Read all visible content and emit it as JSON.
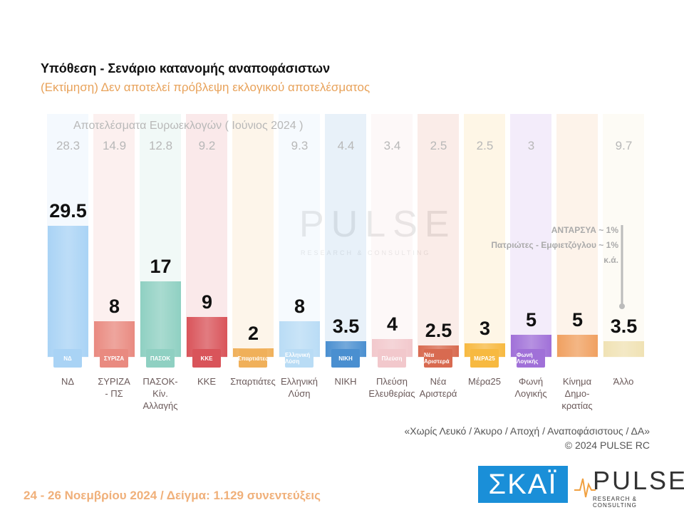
{
  "header": {
    "title": "Υπόθεση - Σενάριο κατανομής αναποφάσιστων",
    "subtitle": "(Εκτίμηση)   Δεν αποτελεί πρόβλεψη εκλογικού αποτελέσματος"
  },
  "chart_data": {
    "type": "bar",
    "euro_results_label": "Αποτελέσματα Ευρωεκλογών  ( Ιούνιος 2024 )",
    "categories": [
      "ΝΔ",
      "ΣΥΡΙΖΑ\n- ΠΣ",
      "ΠΑΣΟΚ-Κίν.\nΑλλαγής",
      "ΚΚΕ",
      "Σπαρτιάτες",
      "Ελληνική\nΛύση",
      "ΝΙΚΗ",
      "Πλεύση\nΕλευθερίας",
      "Νέα\nΑριστερά",
      "Μέρα25",
      "Φωνή\nΛογικής",
      "Κίνημα\nΔημο-\nκρατίας",
      "Άλλο"
    ],
    "values": [
      29.5,
      8,
      17,
      9,
      2,
      8,
      3.5,
      4,
      2.5,
      3,
      5,
      5,
      3.5
    ],
    "value_labels": [
      "29.5",
      "8",
      "17",
      "9",
      "2",
      "8",
      "3.5",
      "4",
      "2.5",
      "3",
      "5",
      "5",
      "3.5"
    ],
    "euro_results": [
      "28.3",
      "14.9",
      "12.8",
      "9.2",
      "",
      "9.3",
      "4.4",
      "3.4",
      "2.5",
      "2.5",
      "3",
      "",
      "9.7"
    ],
    "colors": [
      "#a9d3f5",
      "#e98a80",
      "#8fd0c2",
      "#d9545a",
      "#f0b05a",
      "#b9dcf5",
      "#4a8fd0",
      "#f2c8cc",
      "#d86a50",
      "#f7b940",
      "#a070d8",
      "#f0a060",
      "#f0e2b4"
    ],
    "logos": [
      "ΝΔ",
      "ΣΥΡΙΖΑ",
      "ΠΑΣΟΚ",
      "ΚΚΕ",
      "Σπαρτιάτες",
      "Ελληνική Λύση",
      "ΝΙΚΗ",
      "Πλεύση",
      "Νέα Αριστερά",
      "ΜέΡΑ25",
      "Φωνή Λογικής",
      "",
      ""
    ],
    "ylim": [
      0,
      30
    ],
    "grid": false
  },
  "other_note": [
    "ΑΝΤΑΡΣΥΑ ~ 1%",
    "Πατριώτες - Εμφιετζόγλου ~ 1%",
    "κ.ά."
  ],
  "watermark": {
    "text": "PULSE",
    "sub": "RESEARCH & CONSULTING"
  },
  "footer": {
    "note": "«Χωρίς Λευκό / Άκυρο / Αποχή / Αναποφάσιστους / ΔΑ»",
    "copyright": "©  2024  PULSE RC",
    "date": "24 - 26 Νοεμβρίου 2024  /  Δείγμα:  1.129 συνεντεύξεις"
  },
  "logos": {
    "skai": "ΣΚΑΪ",
    "pulse": "PULSE",
    "pulse_sub": "RESEARCH & CONSULTING"
  }
}
